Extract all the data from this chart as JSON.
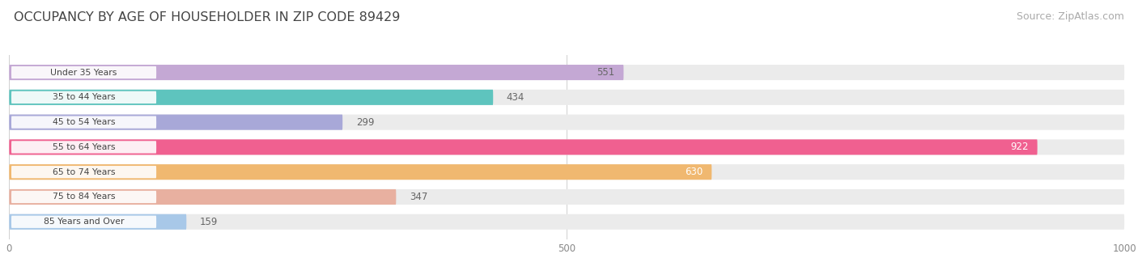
{
  "title": "OCCUPANCY BY AGE OF HOUSEHOLDER IN ZIP CODE 89429",
  "source": "Source: ZipAtlas.com",
  "categories": [
    "Under 35 Years",
    "35 to 44 Years",
    "45 to 54 Years",
    "55 to 64 Years",
    "65 to 74 Years",
    "75 to 84 Years",
    "85 Years and Over"
  ],
  "values": [
    551,
    434,
    299,
    922,
    630,
    347,
    159
  ],
  "bar_colors": [
    "#c4a8d4",
    "#5ec4be",
    "#a8a8d8",
    "#f06090",
    "#f0b870",
    "#e8b0a0",
    "#a8c8e8"
  ],
  "bar_bg_color": "#ebebeb",
  "value_label_colors": [
    "#666666",
    "#666666",
    "#666666",
    "#ffffff",
    "#ffffff",
    "#666666",
    "#666666"
  ],
  "xlim": [
    0,
    1000
  ],
  "x_ticks": [
    0,
    500,
    1000
  ],
  "bg_color": "#ffffff",
  "title_fontsize": 11.5,
  "source_fontsize": 9,
  "bar_height": 0.62,
  "bar_gap": 0.38
}
